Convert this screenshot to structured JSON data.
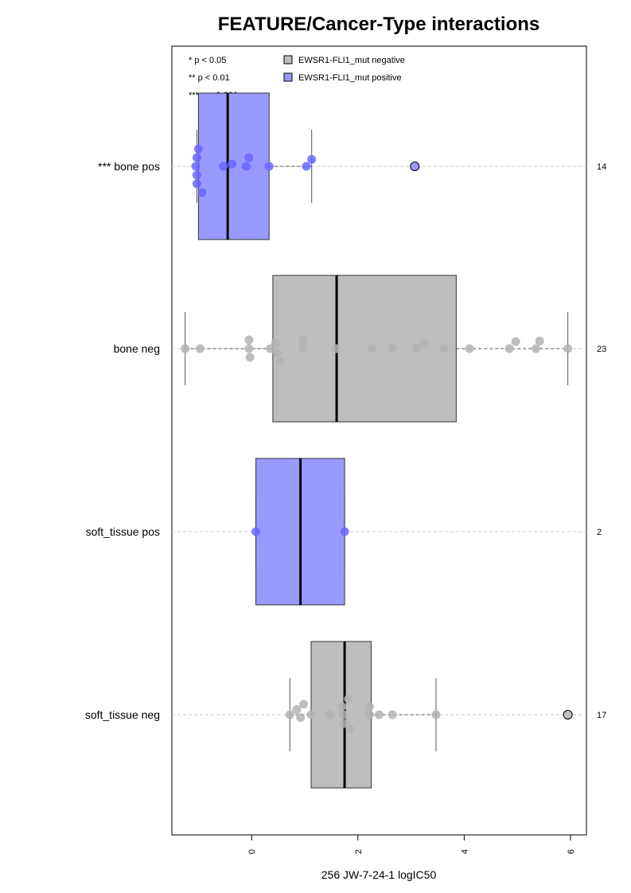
{
  "chart_data": {
    "type": "boxplot",
    "orientation": "horizontal",
    "title": "FEATURE/Cancer-Type interactions",
    "xlabel": "256 JW-7-24-1 logIC50",
    "xlim": [
      -1.5,
      6.3
    ],
    "xticks": [
      0,
      2,
      4,
      6
    ],
    "xtick_labels": [
      "0",
      "2",
      "4",
      "6"
    ],
    "legend": {
      "position": "top",
      "significance": [
        "* p < 0.05",
        "** p < 0.01",
        "*** p < 0.001"
      ],
      "entries": [
        {
          "label": "EWSR1-FLI1_mut negative",
          "color": "#bebebe"
        },
        {
          "label": "EWSR1-FLI1_mut positive",
          "color": "#9999ff"
        }
      ]
    },
    "point_colors": {
      "negative": "#b3b3b3",
      "positive": "#6666ff"
    },
    "groups": [
      {
        "label": "*** bone pos",
        "n": "14",
        "status": "positive",
        "box": {
          "q1": -1.0,
          "median": -0.45,
          "q3": 0.33,
          "whisker_low": -1.03,
          "whisker_high": 1.13
        },
        "points": [
          {
            "x": -1.0,
            "j": 0.3
          },
          {
            "x": -1.03,
            "j": 0.15
          },
          {
            "x": -1.05,
            "j": 0.0
          },
          {
            "x": -1.03,
            "j": -0.15
          },
          {
            "x": -1.03,
            "j": -0.3
          },
          {
            "x": -0.93,
            "j": -0.45
          },
          {
            "x": -0.53,
            "j": 0.0
          },
          {
            "x": -0.37,
            "j": 0.04
          },
          {
            "x": -0.1,
            "j": 0.0
          },
          {
            "x": -0.05,
            "j": 0.15
          },
          {
            "x": 0.33,
            "j": 0.0
          },
          {
            "x": 1.03,
            "j": 0.0
          },
          {
            "x": 1.13,
            "j": 0.12
          }
        ],
        "outliers": [
          3.07
        ]
      },
      {
        "label": "bone neg",
        "n": "23",
        "status": "negative",
        "box": {
          "q1": 0.4,
          "median": 1.6,
          "q3": 3.85,
          "whisker_low": -1.25,
          "whisker_high": 5.95
        },
        "points": [
          {
            "x": -1.25,
            "j": 0.0
          },
          {
            "x": -0.97,
            "j": 0.0
          },
          {
            "x": -0.05,
            "j": 0.15
          },
          {
            "x": -0.05,
            "j": 0.0
          },
          {
            "x": -0.03,
            "j": -0.15
          },
          {
            "x": 0.35,
            "j": 0.0
          },
          {
            "x": 0.45,
            "j": 0.1
          },
          {
            "x": 0.48,
            "j": -0.07
          },
          {
            "x": 0.53,
            "j": -0.22
          },
          {
            "x": 0.97,
            "j": 0.15
          },
          {
            "x": 0.97,
            "j": 0.0
          },
          {
            "x": 1.6,
            "j": 0.0
          },
          {
            "x": 2.27,
            "j": 0.0
          },
          {
            "x": 2.65,
            "j": 0.0
          },
          {
            "x": 3.1,
            "j": 0.0
          },
          {
            "x": 3.25,
            "j": 0.09
          },
          {
            "x": 3.62,
            "j": 0.0
          },
          {
            "x": 4.1,
            "j": 0.0
          },
          {
            "x": 4.85,
            "j": 0.0
          },
          {
            "x": 4.97,
            "j": 0.12
          },
          {
            "x": 5.35,
            "j": 0.0
          },
          {
            "x": 5.42,
            "j": 0.13
          },
          {
            "x": 5.95,
            "j": 0.0
          }
        ],
        "outliers": []
      },
      {
        "label": "soft_tissue pos",
        "n": "2",
        "status": "positive",
        "box": {
          "q1": 0.08,
          "median": 0.92,
          "q3": 1.75,
          "whisker_low": 0.08,
          "whisker_high": 1.75
        },
        "points": [
          {
            "x": 0.08,
            "j": 0.0
          },
          {
            "x": 1.75,
            "j": 0.0
          }
        ],
        "outliers": []
      },
      {
        "label": "soft_tissue neg",
        "n": "17",
        "status": "negative",
        "box": {
          "q1": 1.12,
          "median": 1.75,
          "q3": 2.25,
          "whisker_low": 0.72,
          "whisker_high": 3.47
        },
        "points": [
          {
            "x": 0.72,
            "j": 0.0
          },
          {
            "x": 0.85,
            "j": 0.09
          },
          {
            "x": 0.92,
            "j": -0.05
          },
          {
            "x": 0.98,
            "j": 0.18
          },
          {
            "x": 1.12,
            "j": 0.0
          },
          {
            "x": 1.47,
            "j": 0.0
          },
          {
            "x": 1.7,
            "j": 0.14
          },
          {
            "x": 1.72,
            "j": 0.0
          },
          {
            "x": 1.75,
            "j": -0.15
          },
          {
            "x": 1.82,
            "j": 0.27
          },
          {
            "x": 1.85,
            "j": -0.25
          },
          {
            "x": 2.22,
            "j": 0.14
          },
          {
            "x": 2.22,
            "j": 0.0
          },
          {
            "x": 2.4,
            "j": 0.0
          },
          {
            "x": 2.65,
            "j": 0.0
          },
          {
            "x": 3.47,
            "j": 0.0
          }
        ],
        "outliers": [
          5.95
        ]
      }
    ]
  }
}
